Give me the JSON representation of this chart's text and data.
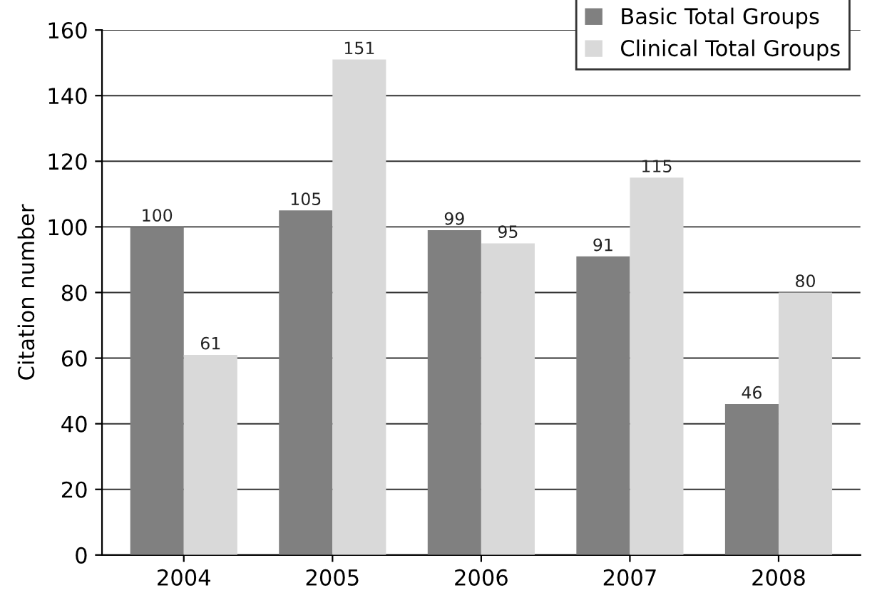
{
  "chart_data": {
    "type": "bar",
    "ylabel": "Citation number",
    "categories": [
      "2004",
      "2005",
      "2006",
      "2007",
      "2008"
    ],
    "series": [
      {
        "name": "Basic Total Groups",
        "color": "#808080",
        "values": [
          100,
          105,
          99,
          91,
          46
        ],
        "value_labels": [
          "100",
          "105",
          "99",
          "91",
          "46"
        ]
      },
      {
        "name": "Clinical Total Groups",
        "color": "#d9d9d9",
        "values": [
          61,
          151,
          95,
          115,
          80
        ],
        "value_labels": [
          "61",
          "151",
          "95",
          "115",
          "80"
        ]
      }
    ],
    "ylim": [
      0,
      160
    ],
    "yticks": [
      0,
      20,
      40,
      60,
      80,
      100,
      120,
      140,
      160
    ],
    "grid": "y",
    "legend": "top right"
  }
}
